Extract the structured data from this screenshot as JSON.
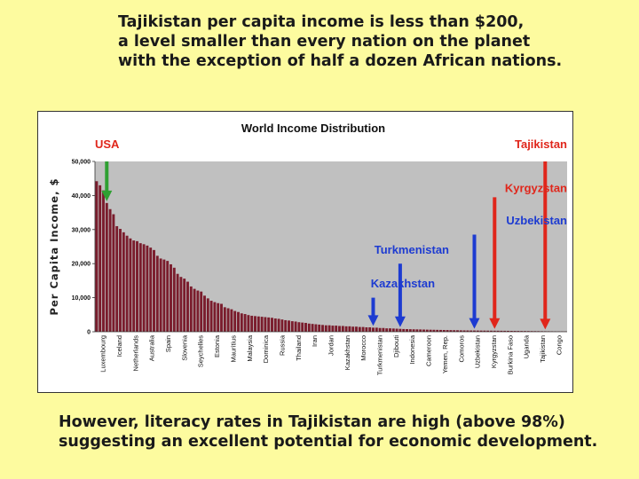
{
  "slide": {
    "top_lines": [
      "Tajikistan per capita income is less than $200,",
      "a level smaller than every nation on the planet",
      "with the exception of half a dozen African nations."
    ],
    "bottom_lines": [
      "However, literacy rates in Tajikistan are high (above 98%)",
      "suggesting an excellent potential for economic development."
    ]
  },
  "chart_data": {
    "type": "bar",
    "title": "World Income Distribution",
    "ylabel": "Per Capita Income, $",
    "xlabel": "",
    "ylim": [
      0,
      50000
    ],
    "yticks": [
      "0",
      "10,000",
      "20,000",
      "30,000",
      "40,000",
      "50,000"
    ],
    "grid": false,
    "bar_color": "#7a1c2c",
    "plot_background": "#c0c0c0",
    "category_labels": [
      "Luxembourg",
      "Iceland",
      "Netherlands",
      "Australia",
      "Spain",
      "Slovenia",
      "Seychelles",
      "Estonia",
      "Mauritius",
      "Malaysia",
      "Dominica",
      "Russia",
      "Thailand",
      "Iran",
      "Jordan",
      "Kazakhstan",
      "Morocco",
      "Turkmenistan",
      "Djibouti",
      "Indonesia",
      "Cameroon",
      "Yemen, Rep.",
      "Comoros",
      "Uzbekistan",
      "Kyrgyzstan",
      "Burkina Faso",
      "Uganda",
      "Tajikistan",
      "Congo"
    ],
    "values": [
      44200,
      43000,
      41500,
      37800,
      36000,
      34500,
      31000,
      30200,
      29200,
      28200,
      27400,
      26800,
      26600,
      26000,
      25700,
      25300,
      24700,
      24000,
      22300,
      21500,
      21200,
      20800,
      19800,
      18800,
      17000,
      16100,
      15600,
      14700,
      13300,
      12600,
      12100,
      11800,
      10600,
      9800,
      9100,
      8700,
      8400,
      8200,
      7200,
      6900,
      6600,
      6100,
      5800,
      5400,
      5200,
      4900,
      4700,
      4600,
      4500,
      4400,
      4300,
      4200,
      4100,
      3900,
      3800,
      3600,
      3400,
      3300,
      3100,
      3000,
      2800,
      2700,
      2600,
      2400,
      2300,
      2200,
      2100,
      2000,
      1900,
      1900,
      1800,
      1800,
      1700,
      1700,
      1600,
      1600,
      1500,
      1500,
      1400,
      1400,
      1300,
      1300,
      1200,
      1200,
      1100,
      1100,
      1000,
      1000,
      950,
      900,
      850,
      800,
      780,
      750,
      720,
      700,
      680,
      650,
      620,
      600,
      580,
      560,
      540,
      520,
      500,
      480,
      460,
      440,
      420,
      400,
      390,
      380,
      370,
      360,
      350,
      340,
      330,
      320,
      310,
      300,
      290,
      280,
      270,
      260,
      250,
      240,
      230,
      220,
      210,
      200,
      190,
      180,
      170,
      160,
      150,
      140,
      130,
      120,
      110,
      100
    ],
    "annotations": [
      {
        "label": "USA",
        "bar_index": 3,
        "color": "#e0261b",
        "arrow_color": "#2fa032",
        "label_x_frac": 0.0,
        "label_y_value": 55000,
        "arrow_from_value": 50000
      },
      {
        "label": "Tajikistan",
        "bar_index": 133,
        "color": "#e0261b",
        "arrow_color": "#e0261b",
        "label_x_frac": 1.0,
        "label_y_value": 55000,
        "arrow_from_value": 50000
      },
      {
        "label": "Kyrgyzstan",
        "bar_index": 118,
        "color": "#e0261b",
        "arrow_color": "#e0261b",
        "label_x_frac": 1.0,
        "label_y_value": 42000,
        "arrow_from_value": 39500
      },
      {
        "label": "Uzbekistan",
        "bar_index": 112,
        "color": "#1d3bd1",
        "arrow_color": "#1d3bd1",
        "label_x_frac": 1.0,
        "label_y_value": 32500,
        "arrow_from_value": 28500
      },
      {
        "label": "Turkmenistan",
        "bar_index": 90,
        "color": "#1d3bd1",
        "arrow_color": "#1d3bd1",
        "label_x_frac": 0.75,
        "label_y_value": 24000,
        "arrow_from_value": 20000
      },
      {
        "label": "Kazakhstan",
        "bar_index": 82,
        "color": "#1d3bd1",
        "arrow_color": "#1d3bd1",
        "label_x_frac": 0.72,
        "label_y_value": 14000,
        "arrow_from_value": 10000
      }
    ]
  }
}
